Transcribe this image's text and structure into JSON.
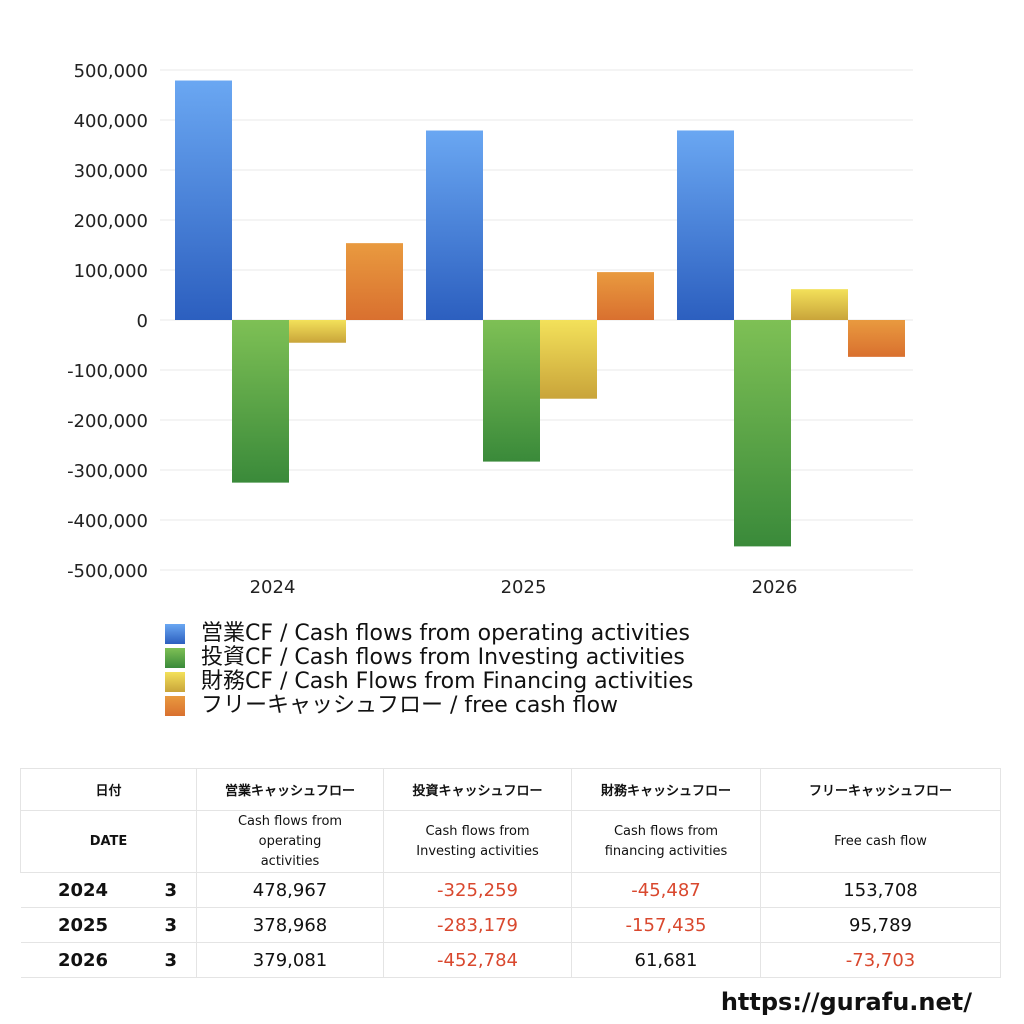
{
  "chart_data": {
    "type": "bar",
    "categories": [
      "2024",
      "2025",
      "2026"
    ],
    "ylim": [
      -500000,
      500000
    ],
    "yticks": [
      500000,
      400000,
      300000,
      200000,
      100000,
      0,
      -100000,
      -200000,
      -300000,
      -400000,
      -500000
    ],
    "ytick_labels": [
      "500,000",
      "400,000",
      "300,000",
      "200,000",
      "100,000",
      "0",
      "-100,000",
      "-200,000",
      "-300,000",
      "-400,000",
      "-500,000"
    ],
    "grid": true,
    "legend_position": "bottom",
    "series": [
      {
        "name": "営業CF / Cash flows from operating activities",
        "values": [
          478967,
          378968,
          379081
        ],
        "color_top": "#6aa7f2",
        "color_bottom": "#2c5fbf"
      },
      {
        "name": "投資CF / Cash flows from Investing activities",
        "values": [
          -325259,
          -283179,
          -452784
        ],
        "color_top": "#7ec055",
        "color_bottom": "#3a8a3a"
      },
      {
        "name": "財務CF / Cash Flows from Financing activities",
        "values": [
          -45487,
          -157435,
          61681
        ],
        "color_top": "#f3e15a",
        "color_bottom": "#c9a43a"
      },
      {
        "name": "フリーキャッシュフロー / free cash flow",
        "values": [
          153708,
          95789,
          -73703
        ],
        "color_top": "#e99a3f",
        "color_bottom": "#d9702f"
      }
    ]
  },
  "table": {
    "headers_jp": [
      "日付",
      "営業キャッシュフロー",
      "投資キャッシュフロー",
      "財務キャッシュフロー",
      "フリーキャッシュフロー"
    ],
    "headers_en": [
      "DATE",
      "Cash flows from operating activities",
      "Cash flows from Investing activities",
      "Cash flows from financing activities",
      "Free cash flow"
    ],
    "rows": [
      {
        "year": "2024",
        "month": "3",
        "op": "478,967",
        "inv": "-325,259",
        "fin": "-45,487",
        "fcf": "153,708"
      },
      {
        "year": "2025",
        "month": "3",
        "op": "378,968",
        "inv": "-283,179",
        "fin": "-157,435",
        "fcf": "95,789"
      },
      {
        "year": "2026",
        "month": "3",
        "op": "379,081",
        "inv": "-452,784",
        "fin": "61,681",
        "fcf": "-73,703"
      }
    ],
    "negative_color": "#d9482e"
  },
  "footer": {
    "site": "https://gurafu.net/"
  }
}
